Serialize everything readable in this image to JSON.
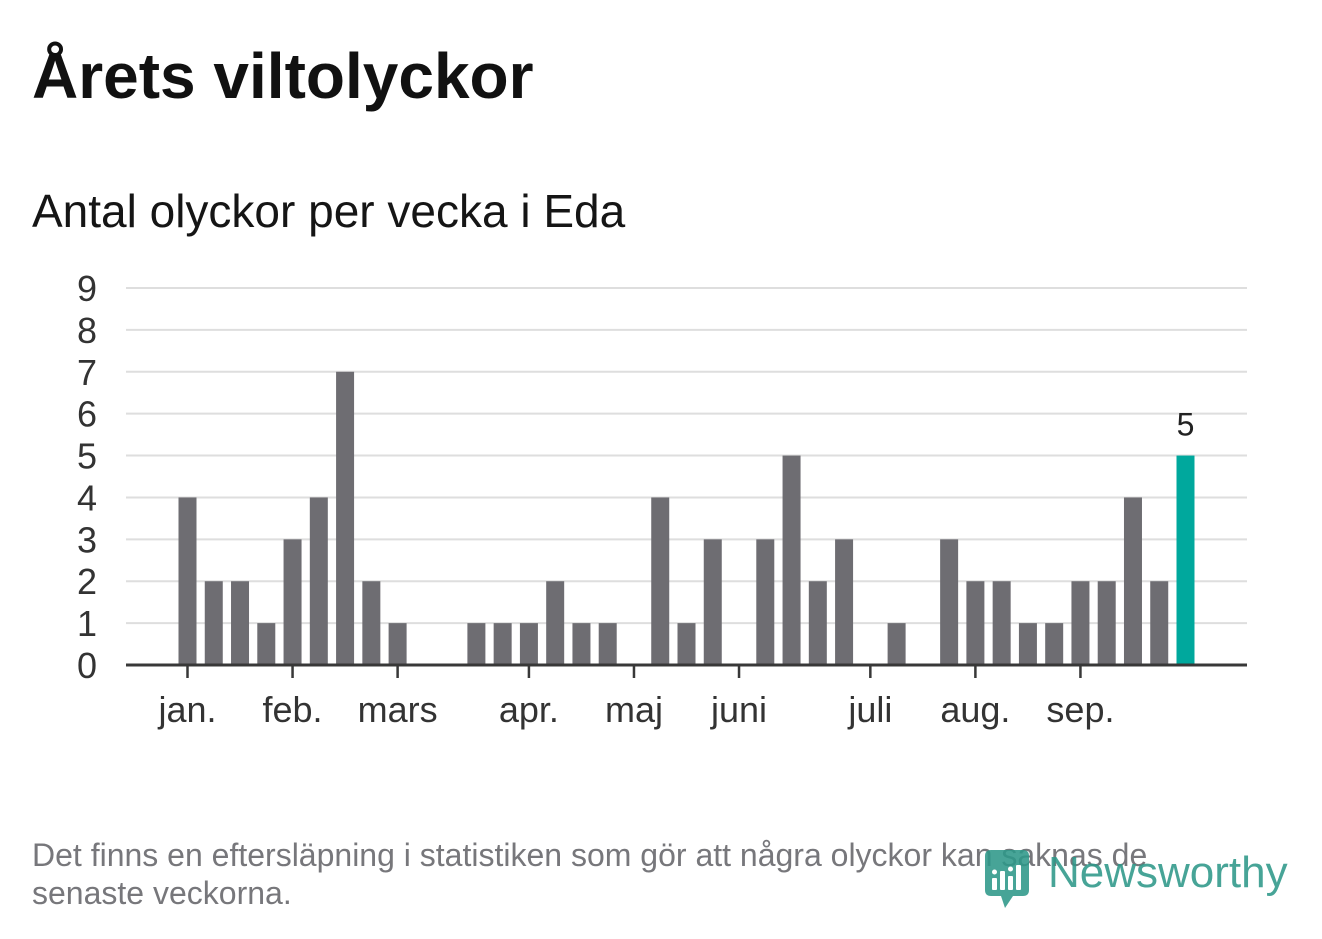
{
  "chart_data": {
    "type": "bar",
    "title": "Årets viltolyckor",
    "subtitle": "Antal olyckor per vecka i Eda",
    "xlabel": "",
    "ylabel": "",
    "weeks": [
      1,
      2,
      3,
      4,
      5,
      6,
      7,
      8,
      9,
      10,
      11,
      12,
      13,
      14,
      15,
      16,
      17,
      18,
      19,
      20,
      21,
      22,
      23,
      24,
      25,
      26,
      27,
      28,
      29,
      30,
      31,
      32,
      33,
      34,
      35,
      36,
      37,
      38,
      39
    ],
    "values": [
      4,
      2,
      2,
      1,
      3,
      4,
      7,
      2,
      1,
      0,
      0,
      1,
      1,
      1,
      2,
      1,
      1,
      0,
      4,
      1,
      3,
      0,
      3,
      5,
      2,
      3,
      0,
      1,
      0,
      3,
      2,
      2,
      1,
      1,
      2,
      2,
      4,
      2,
      5
    ],
    "ylim": [
      0,
      9
    ],
    "yticks": [
      0,
      1,
      2,
      3,
      4,
      5,
      6,
      7,
      8,
      9
    ],
    "x_ticks": [
      {
        "label": "jan.",
        "week": 1
      },
      {
        "label": "feb.",
        "week": 5
      },
      {
        "label": "mars",
        "week": 9
      },
      {
        "label": "apr.",
        "week": 14
      },
      {
        "label": "maj",
        "week": 18
      },
      {
        "label": "juni",
        "week": 22
      },
      {
        "label": "juli",
        "week": 27
      },
      {
        "label": "aug.",
        "week": 31
      },
      {
        "label": "sep.",
        "week": 35
      }
    ],
    "highlight": {
      "week": 39,
      "label": "5"
    },
    "grid": true,
    "legend": "none"
  },
  "footnote": "Det finns en eftersläpning i statistiken som gör att några olyckor kan saknas de senaste veckorna.",
  "logo": {
    "text": "Newsworthy",
    "icon": "newsworthy-chart-bubble-icon"
  },
  "colors": {
    "bar": "#6e6d72",
    "highlight": "#00a89d",
    "grid": "#dedede",
    "axis": "#383838",
    "tick_text": "#333333",
    "title": "#111111",
    "muted": "#77777b",
    "logo": "#2e9889"
  }
}
